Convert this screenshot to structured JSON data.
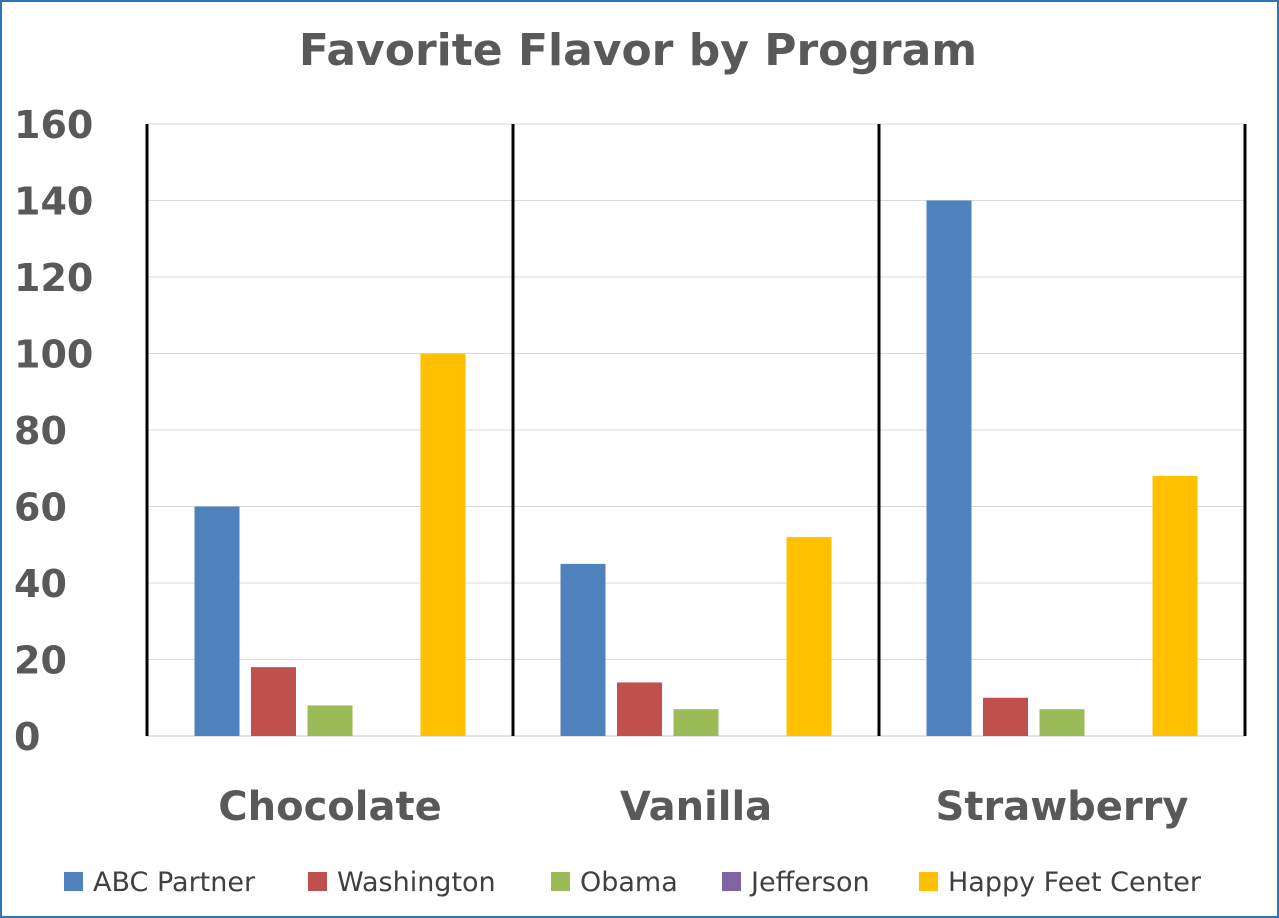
{
  "chart_data": {
    "type": "bar",
    "title": "Favorite Flavor by Program",
    "xlabel": "",
    "ylabel": "",
    "ylim": [
      0,
      160
    ],
    "yticks": [
      0,
      20,
      40,
      60,
      80,
      100,
      120,
      140,
      160
    ],
    "grid": true,
    "legend_position": "bottom",
    "categories": [
      "Chocolate",
      "Vanilla",
      "Strawberry"
    ],
    "series": [
      {
        "name": "ABC Partner",
        "color": "#4f81bd",
        "values": [
          60,
          45,
          140
        ]
      },
      {
        "name": "Washington",
        "color": "#c0504d",
        "values": [
          18,
          14,
          10
        ]
      },
      {
        "name": "Obama",
        "color": "#9bbb59",
        "values": [
          8,
          7,
          7
        ]
      },
      {
        "name": "Jefferson",
        "color": "#8064a2",
        "values": [
          0,
          0,
          0
        ]
      },
      {
        "name": "Happy Feet Center",
        "color": "#ffc000",
        "values": [
          100,
          52,
          68
        ]
      }
    ]
  },
  "colors": {
    "frame_border": "#2e75b6",
    "text": "#595959",
    "legend_text": "#404040",
    "gridline": "#d9d9d9",
    "separator": "#000000"
  }
}
